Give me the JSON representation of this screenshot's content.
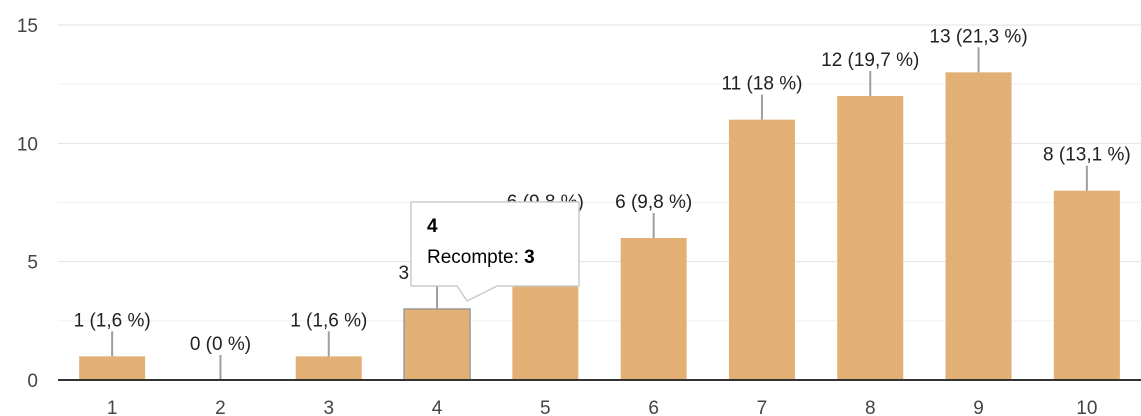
{
  "chart_data": {
    "type": "bar",
    "categories": [
      "1",
      "2",
      "3",
      "4",
      "5",
      "6",
      "7",
      "8",
      "9",
      "10"
    ],
    "values": [
      1,
      0,
      1,
      3,
      6,
      6,
      11,
      12,
      13,
      8
    ],
    "data_labels": [
      "1 (1,6 %)",
      "0 (0 %)",
      "1 (1,6 %)",
      "3 (4,9 %)",
      "6 (9,8 %)",
      "6 (9,8 %)",
      "11 (18 %)",
      "12 (19,7 %)",
      "13 (21,3 %)",
      "8 (13,1 %)"
    ],
    "ylim": [
      0,
      15
    ],
    "yticks": [
      0,
      5,
      10,
      15
    ],
    "grid": true,
    "legend": "none",
    "bar_color": "#e2af75",
    "highlight_index": 3,
    "tooltip": {
      "title": "4",
      "label": "Recompte: ",
      "value": "3"
    }
  }
}
